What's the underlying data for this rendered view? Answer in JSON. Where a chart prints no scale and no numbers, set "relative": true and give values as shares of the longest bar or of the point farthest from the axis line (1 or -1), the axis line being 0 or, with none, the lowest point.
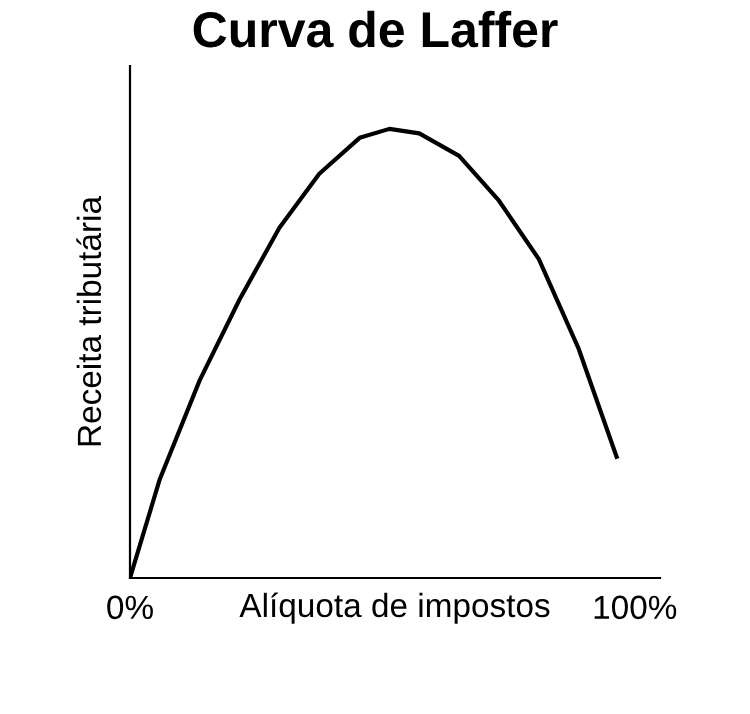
{
  "chart_data": {
    "type": "line",
    "title": "Curva de Laffer",
    "xlabel": "Alíquota de impostos",
    "ylabel": "Receita tributária",
    "relative": true,
    "xlim": [
      0,
      105
    ],
    "xticks": [
      {
        "value": 0,
        "label": "0%"
      },
      {
        "value": 100,
        "label": "100%"
      }
    ],
    "tick_labels": "x",
    "grid": false,
    "legend": false,
    "marker": "none",
    "line_style": "solid",
    "series": [
      {
        "color": "#000000",
        "x": [
          0,
          5.9,
          13.8,
          21.7,
          29.6,
          37.5,
          45.5,
          51.4,
          57.3,
          65.2,
          73.1,
          81.0,
          88.9,
          96.4
        ],
        "values": [
          0,
          0.22,
          0.44,
          0.62,
          0.78,
          0.9,
          0.98,
          1,
          0.99,
          0.94,
          0.84,
          0.71,
          0.51,
          0.27
        ]
      }
    ]
  }
}
